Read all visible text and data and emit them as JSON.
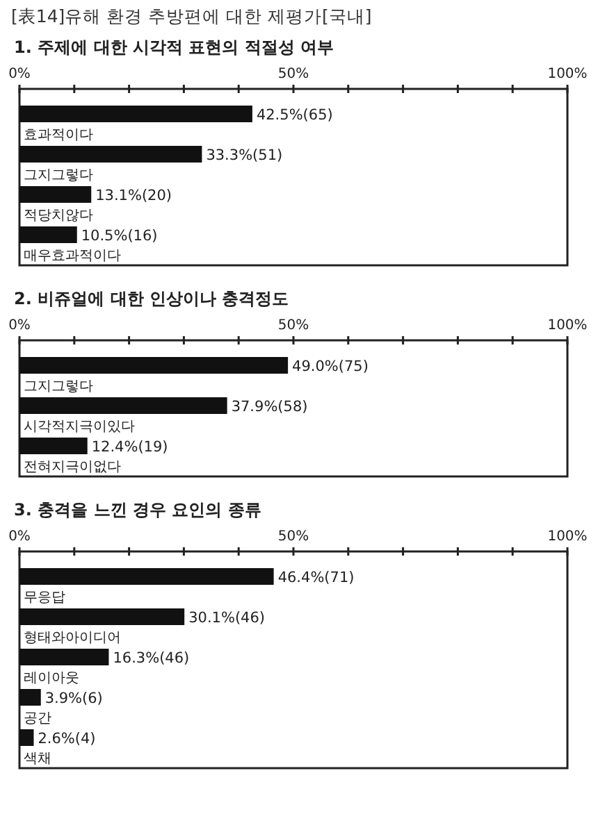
{
  "chart_data": [
    {
      "type": "bar",
      "orientation": "horizontal",
      "title": "1. 주제에 대한 시각적 표현의 적절성 여부",
      "annotations": [
        "[表14]유해 환경 추방편에 대한 제평가[국내]"
      ],
      "categories": [
        "효과적이다",
        "그지그렇다",
        "적당치않다",
        "매우효과적이다"
      ],
      "values": [
        42.5,
        33.3,
        13.1,
        10.5
      ],
      "value_labels": [
        "42.5%(65)",
        "33.3%(51)",
        "13.1%(20)",
        "10.5%(16)"
      ],
      "color": "#111111",
      "xlim": [
        0,
        100
      ],
      "xticks": [
        {
          "value": 0,
          "label": "0%"
        },
        {
          "value": 10,
          "label": null
        },
        {
          "value": 20,
          "label": null
        },
        {
          "value": 30,
          "label": null
        },
        {
          "value": 40,
          "label": null
        },
        {
          "value": 50,
          "label": "50%"
        },
        {
          "value": 60,
          "label": null
        },
        {
          "value": 70,
          "label": null
        },
        {
          "value": 80,
          "label": null
        },
        {
          "value": 90,
          "label": null
        },
        {
          "value": 100,
          "label": "100%"
        }
      ]
    },
    {
      "type": "bar",
      "orientation": "horizontal",
      "title": "2. 비쥬얼에 대한 인상이나 충격정도",
      "categories": [
        "그지그렇다",
        "시각적지극이있다",
        "전혀지극이없다"
      ],
      "values": [
        49.0,
        37.9,
        12.4
      ],
      "value_labels": [
        "49.0%(75)",
        "37.9%(58)",
        "12.4%(19)"
      ],
      "color": "#111111",
      "xlim": [
        0,
        100
      ],
      "xticks": [
        {
          "value": 0,
          "label": "0%"
        },
        {
          "value": 10,
          "label": null
        },
        {
          "value": 20,
          "label": null
        },
        {
          "value": 30,
          "label": null
        },
        {
          "value": 40,
          "label": null
        },
        {
          "value": 50,
          "label": "50%"
        },
        {
          "value": 60,
          "label": null
        },
        {
          "value": 70,
          "label": null
        },
        {
          "value": 80,
          "label": null
        },
        {
          "value": 90,
          "label": null
        },
        {
          "value": 100,
          "label": "100%"
        }
      ]
    },
    {
      "type": "bar",
      "orientation": "horizontal",
      "title": "3. 충격을 느낀 경우 요인의 종류",
      "categories": [
        "무응답",
        "형태와아이디어",
        "레이아웃",
        "공간",
        "색채"
      ],
      "values": [
        46.4,
        30.1,
        16.3,
        3.9,
        2.6
      ],
      "value_labels": [
        "46.4%(71)",
        "30.1%(46)",
        "16.3%(46)",
        "3.9%(6)",
        "2.6%(4)"
      ],
      "color": "#111111",
      "xlim": [
        0,
        100
      ],
      "xticks": [
        {
          "value": 0,
          "label": "0%"
        },
        {
          "value": 10,
          "label": null
        },
        {
          "value": 20,
          "label": null
        },
        {
          "value": 30,
          "label": null
        },
        {
          "value": 40,
          "label": null
        },
        {
          "value": 50,
          "label": "50%"
        },
        {
          "value": 60,
          "label": null
        },
        {
          "value": 70,
          "label": null
        },
        {
          "value": 80,
          "label": null
        },
        {
          "value": 90,
          "label": null
        },
        {
          "value": 100,
          "label": "100%"
        }
      ]
    }
  ]
}
